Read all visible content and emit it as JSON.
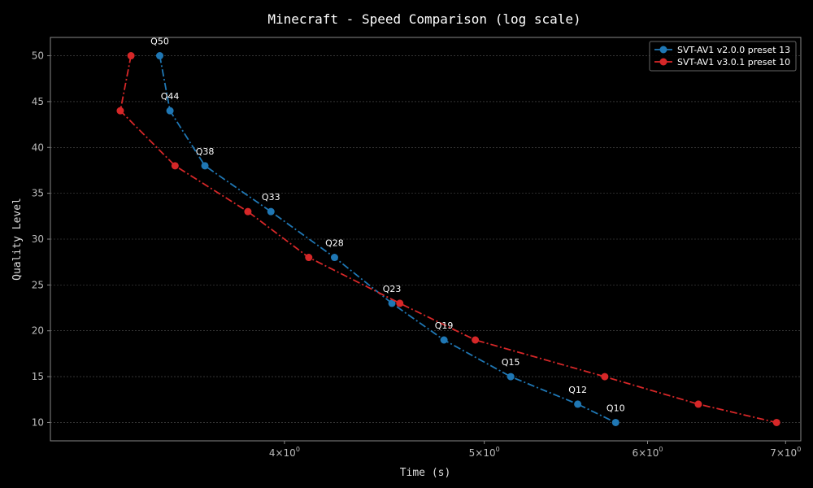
{
  "chart_data": {
    "type": "line",
    "title": "Minecraft - Speed Comparison (log scale)",
    "xlabel": "Time (s)",
    "ylabel": "Quality Level",
    "xscale": "log",
    "xlim": [
      3.08,
      7.12
    ],
    "ylim": [
      8,
      52
    ],
    "xticks": [
      {
        "value": 4,
        "base": "4",
        "exp": "0"
      },
      {
        "value": 5,
        "base": "5",
        "exp": "0"
      },
      {
        "value": 6,
        "base": "6",
        "exp": "0"
      },
      {
        "value": 7,
        "base": "7",
        "exp": "0"
      }
    ],
    "yticks": [
      10,
      15,
      20,
      25,
      30,
      35,
      40,
      45,
      50
    ],
    "grid": true,
    "legend_position": "top-right",
    "series": [
      {
        "name": "SVT-AV1 v2.0.0 preset 13",
        "color": "#1f77b4",
        "line_style": "dashdot",
        "points": [
          {
            "x": 3.48,
            "y": 50,
            "label": "Q50"
          },
          {
            "x": 3.52,
            "y": 44,
            "label": "Q44"
          },
          {
            "x": 3.66,
            "y": 38,
            "label": "Q38"
          },
          {
            "x": 3.94,
            "y": 33,
            "label": "Q33"
          },
          {
            "x": 4.23,
            "y": 28,
            "label": "Q28"
          },
          {
            "x": 4.51,
            "y": 23,
            "label": "Q23"
          },
          {
            "x": 4.78,
            "y": 19,
            "label": "Q19"
          },
          {
            "x": 5.15,
            "y": 15,
            "label": "Q15"
          },
          {
            "x": 5.55,
            "y": 12,
            "label": "Q12"
          },
          {
            "x": 5.79,
            "y": 10,
            "label": "Q10"
          }
        ]
      },
      {
        "name": "SVT-AV1 v3.0.1 preset 10",
        "color": "#d62728",
        "line_style": "dashdot",
        "points": [
          {
            "x": 3.37,
            "y": 50
          },
          {
            "x": 3.33,
            "y": 44
          },
          {
            "x": 3.54,
            "y": 38
          },
          {
            "x": 3.84,
            "y": 33
          },
          {
            "x": 4.11,
            "y": 28
          },
          {
            "x": 4.55,
            "y": 23
          },
          {
            "x": 4.95,
            "y": 19
          },
          {
            "x": 5.72,
            "y": 15
          },
          {
            "x": 6.35,
            "y": 12
          },
          {
            "x": 6.93,
            "y": 10
          }
        ]
      }
    ]
  }
}
